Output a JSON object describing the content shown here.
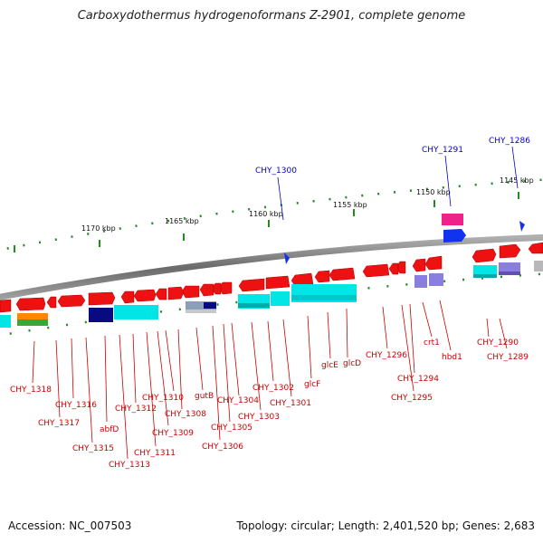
{
  "title": "Carboxydothermus hydrogenoformans Z-2901, complete genome",
  "footer": {
    "accession": "Accession: NC_007503",
    "summary": "Topology: circular; Length: 2,401,520 bp; Genes: 2,683"
  },
  "ticks": [
    "1145 kbp",
    "1150 kbp",
    "1155 kbp",
    "1160 kbp",
    "1165 kbp",
    "1170 kbp"
  ],
  "blue_labels": [
    "CHY_1286",
    "CHY_1291",
    "CHY_1300"
  ],
  "red_labels": [
    "CHY_1289",
    "CHY_1290",
    "hbd1",
    "crt1",
    "CHY_1294",
    "CHY_1295",
    "CHY_1296",
    "glcD",
    "glcE",
    "glcF",
    "CHY_1301",
    "CHY_1302",
    "CHY_1303",
    "CHY_1304",
    "CHY_1305",
    "CHY_1306",
    "gutB",
    "CHY_1308",
    "CHY_1309",
    "CHY_1310",
    "CHY_1311",
    "CHY_1312",
    "CHY_1313",
    "abfD",
    "CHY_1315",
    "CHY_1316",
    "CHY_1317",
    "CHY_1318"
  ],
  "colors": {
    "gene_red": "#ee1111",
    "label_red": "#cc0000",
    "label_blue": "#0000cc",
    "tick_green": "#228b22",
    "backbone": "#808080",
    "cyan": "#00e5e5",
    "navy": "#0a0a80",
    "purple": "#8a7ee0",
    "magenta": "#ee2288"
  }
}
